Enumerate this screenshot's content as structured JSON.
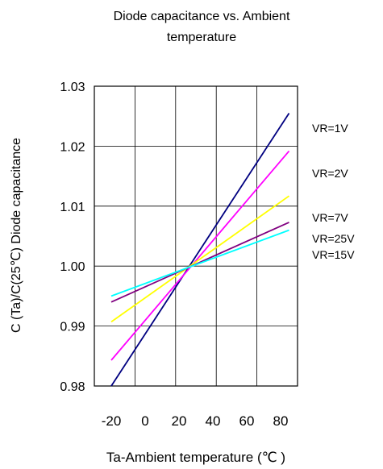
{
  "chart_data": {
    "type": "line",
    "title_line1": "Diode capacitance vs. Ambient",
    "title_line2": "temperature",
    "xlabel": "Ta-Ambient temperature (℃ )",
    "ylabel": "C (Ta)/C(25℃) Diode capacitance",
    "xlim": [
      -30,
      90
    ],
    "ylim": [
      0.98,
      1.03
    ],
    "x_ticks": [
      -20,
      0,
      20,
      40,
      60,
      80
    ],
    "x_tick_labels": [
      "-20",
      "0",
      "20",
      "40",
      "60",
      "80"
    ],
    "y_ticks": [
      0.98,
      0.99,
      1.0,
      1.01,
      1.02,
      1.03
    ],
    "y_tick_labels": [
      "0.98",
      "0.99",
      "1.00",
      "1.01",
      "1.02",
      "1.03"
    ],
    "grid": true,
    "series": [
      {
        "name": "VR=1V",
        "color": "#000080",
        "x": [
          -20,
          85
        ],
        "values": [
          0.98,
          1.0255
        ]
      },
      {
        "name": "VR=2V",
        "color": "#ff00ff",
        "x": [
          -20,
          85
        ],
        "values": [
          0.9843,
          1.0192
        ]
      },
      {
        "name": "VR=7V",
        "color": "#ffff00",
        "x": [
          -20,
          85
        ],
        "values": [
          0.9907,
          1.0117
        ]
      },
      {
        "name": "VR=25V",
        "color": "#800080",
        "x": [
          -20,
          85
        ],
        "values": [
          0.994,
          1.0073
        ]
      },
      {
        "name": "VR=15V",
        "color": "#00ffff",
        "x": [
          -20,
          85
        ],
        "values": [
          0.995,
          1.006
        ]
      }
    ]
  }
}
